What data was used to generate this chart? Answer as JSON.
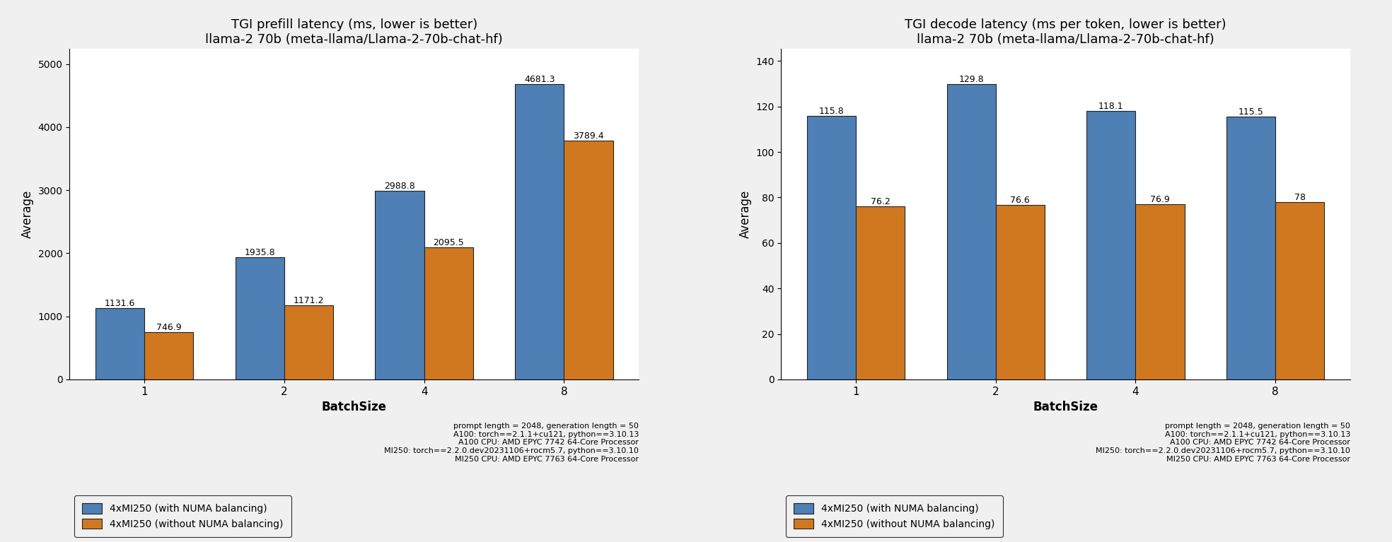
{
  "prefill": {
    "title_line1": "TGI prefill latency (ms, lower is better)",
    "title_line2": "llama-2 70b (meta-llama/Llama-2-70b-chat-hf)",
    "categories": [
      1,
      2,
      4,
      8
    ],
    "with_numa": [
      1131.6,
      1935.8,
      2988.8,
      4681.3
    ],
    "without_numa": [
      746.9,
      1171.2,
      2095.5,
      3789.4
    ],
    "ylabel": "Average",
    "xlabel": "BatchSize"
  },
  "decode": {
    "title_line1": "TGI decode latency (ms per token, lower is better)",
    "title_line2": "llama-2 70b (meta-llama/Llama-2-70b-chat-hf)",
    "categories": [
      1,
      2,
      4,
      8
    ],
    "with_numa": [
      115.8,
      129.8,
      118.1,
      115.5
    ],
    "without_numa": [
      76.2,
      76.6,
      76.9,
      78
    ],
    "ylabel": "Average",
    "xlabel": "BatchSize"
  },
  "legend": {
    "with_numa_label": "4xMI250 (with NUMA balancing)",
    "without_numa_label": "4xMI250 (without NUMA balancing)"
  },
  "annotation_text": "prompt length = 2048, generation length = 50\nA100: torch==2.1.1+cu121, python==3.10.13\nA100 CPU: AMD EPYC 7742 64-Core Processor\nMI250: torch==2.2.0.dev20231106+rocm5.7, python==3.10.10\nMI250 CPU: AMD EPYC 7763 64-Core Processor",
  "color_with_numa": "#4e7fb5",
  "color_without_numa": "#d07820",
  "bar_width": 0.35,
  "bar_edge_color": "#222222",
  "bar_edge_width": 0.8,
  "fig_width": 19.68,
  "fig_height": 7.67,
  "background_color": "#f0f0f0"
}
